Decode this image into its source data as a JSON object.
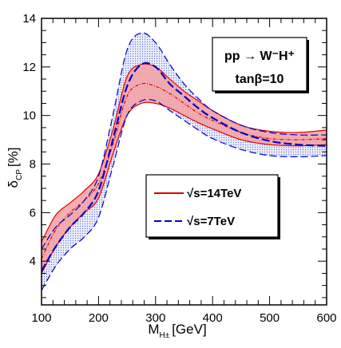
{
  "chart_data": {
    "type": "line",
    "title": "",
    "xlabel": {
      "main": "M",
      "sub": "H±",
      "unit": "[GeV]"
    },
    "ylabel": {
      "main": "δ",
      "sub": "CP",
      "unit": "[%]"
    },
    "xlim": [
      100,
      600
    ],
    "ylim": [
      2.2,
      14
    ],
    "xticks": [
      "100",
      "200",
      "300",
      "400",
      "500",
      "600"
    ],
    "yticks": [
      "4",
      "6",
      "8",
      "10",
      "12",
      "14"
    ],
    "grid": false,
    "annotation": {
      "line1": "pp → W⁻H⁺",
      "line2": "tanβ=10"
    },
    "legend": {
      "position": "center-right"
    },
    "x": [
      100,
      125,
      150,
      175,
      200,
      225,
      250,
      275,
      300,
      325,
      350,
      375,
      400,
      450,
      500,
      550,
      600
    ],
    "series": [
      {
        "name": "√s=14TeV",
        "color": "#e00000",
        "fill": "#f4a0a0",
        "style": "solid",
        "central": [
          4.1,
          5.3,
          6.0,
          6.5,
          7.2,
          8.8,
          10.8,
          11.3,
          11.2,
          10.9,
          10.5,
          10.1,
          9.8,
          9.3,
          9.05,
          9.0,
          9.05
        ],
        "lower": [
          3.5,
          4.6,
          5.4,
          6.0,
          6.6,
          8.4,
          10.0,
          10.5,
          10.5,
          10.3,
          10.0,
          9.7,
          9.45,
          9.0,
          8.8,
          8.75,
          8.8
        ],
        "upper": [
          4.8,
          5.9,
          6.4,
          6.9,
          7.6,
          9.4,
          11.6,
          12.1,
          12.0,
          11.5,
          11.0,
          10.6,
          10.2,
          9.6,
          9.35,
          9.3,
          9.4
        ],
        "band_lower": [
          3.5,
          4.6,
          5.4,
          6.0,
          6.6,
          8.4,
          10.0,
          10.5,
          10.5,
          10.3,
          10.0,
          9.7,
          9.45,
          9.0,
          8.8,
          8.75,
          8.8
        ],
        "band_upper": [
          4.8,
          5.9,
          6.4,
          6.9,
          7.6,
          9.4,
          11.6,
          12.1,
          12.0,
          11.5,
          11.0,
          10.6,
          10.2,
          9.6,
          9.35,
          9.3,
          9.4
        ]
      },
      {
        "name": "√s=7TeV",
        "color": "#0000cc",
        "fill": "#d8dcf8",
        "style": "dashed",
        "central": [
          3.6,
          4.6,
          5.4,
          6.0,
          6.9,
          9.0,
          11.2,
          12.1,
          12.0,
          11.3,
          10.8,
          10.3,
          9.9,
          9.3,
          8.95,
          8.8,
          8.75
        ],
        "lower": [
          2.8,
          3.8,
          4.5,
          5.0,
          5.8,
          7.9,
          10.0,
          10.6,
          10.6,
          10.2,
          9.8,
          9.4,
          9.05,
          8.6,
          8.35,
          8.3,
          8.35
        ],
        "upper": [
          4.5,
          5.4,
          5.9,
          6.5,
          7.5,
          10.0,
          12.7,
          13.4,
          13.0,
          12.1,
          11.3,
          10.7,
          10.2,
          9.6,
          9.3,
          9.2,
          9.2
        ],
        "band_lower": [
          2.8,
          3.8,
          4.5,
          5.0,
          5.8,
          7.9,
          10.0,
          10.6,
          10.6,
          10.2,
          9.8,
          9.4,
          9.05,
          8.6,
          8.35,
          8.3,
          8.35
        ],
        "band_upper": [
          4.5,
          5.4,
          5.9,
          6.5,
          7.5,
          10.0,
          12.7,
          13.4,
          13.0,
          12.1,
          11.3,
          10.7,
          10.2,
          9.6,
          9.3,
          9.2,
          9.2
        ]
      }
    ]
  }
}
